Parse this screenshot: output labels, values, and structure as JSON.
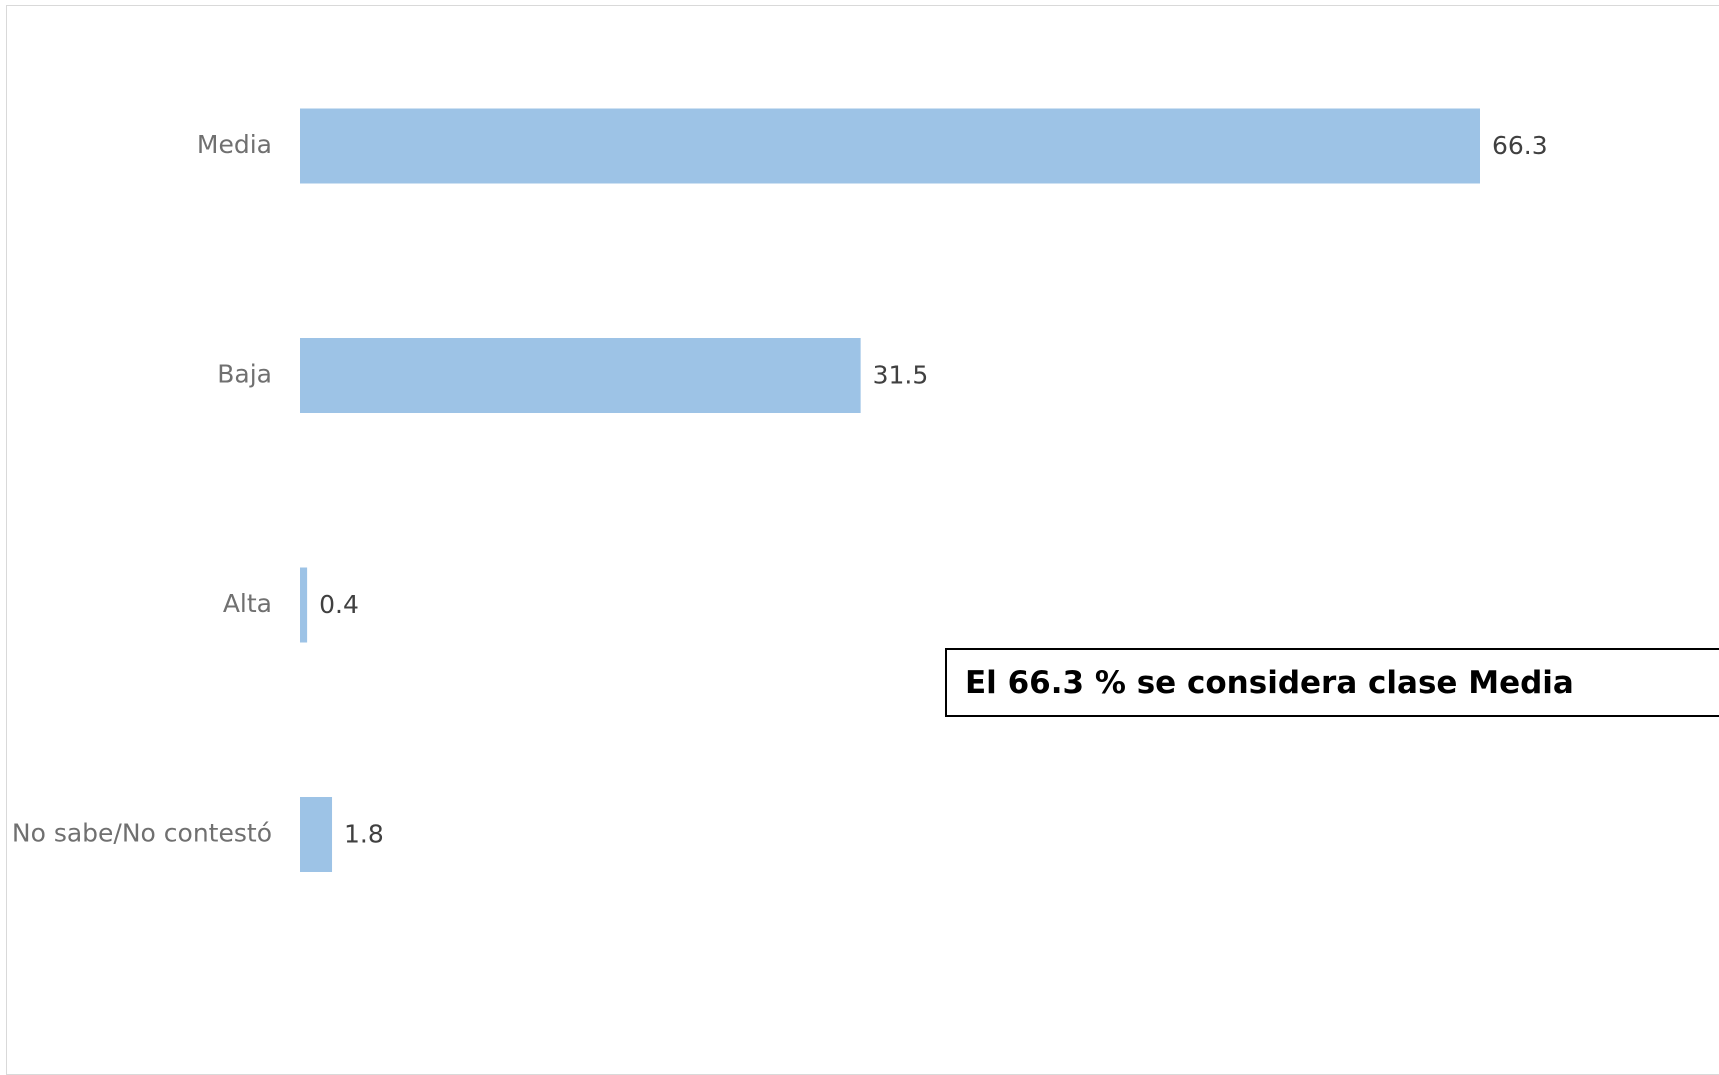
{
  "chart_data": {
    "type": "bar",
    "orientation": "horizontal",
    "categories": [
      "Media",
      "Baja",
      "Alta",
      "No sabe/No contestó"
    ],
    "values": [
      66.3,
      31.5,
      0.4,
      1.8
    ],
    "data_labels": [
      "66.3",
      "31.5",
      "0.4",
      "1.8"
    ],
    "title": "",
    "xlabel": "",
    "ylabel": "",
    "xlim": [
      0,
      66.3
    ],
    "grid": false,
    "legend": "none",
    "bar_color": "#9dc3e6"
  },
  "annotation": {
    "text": "El 66.3 % se considera clase Media"
  }
}
